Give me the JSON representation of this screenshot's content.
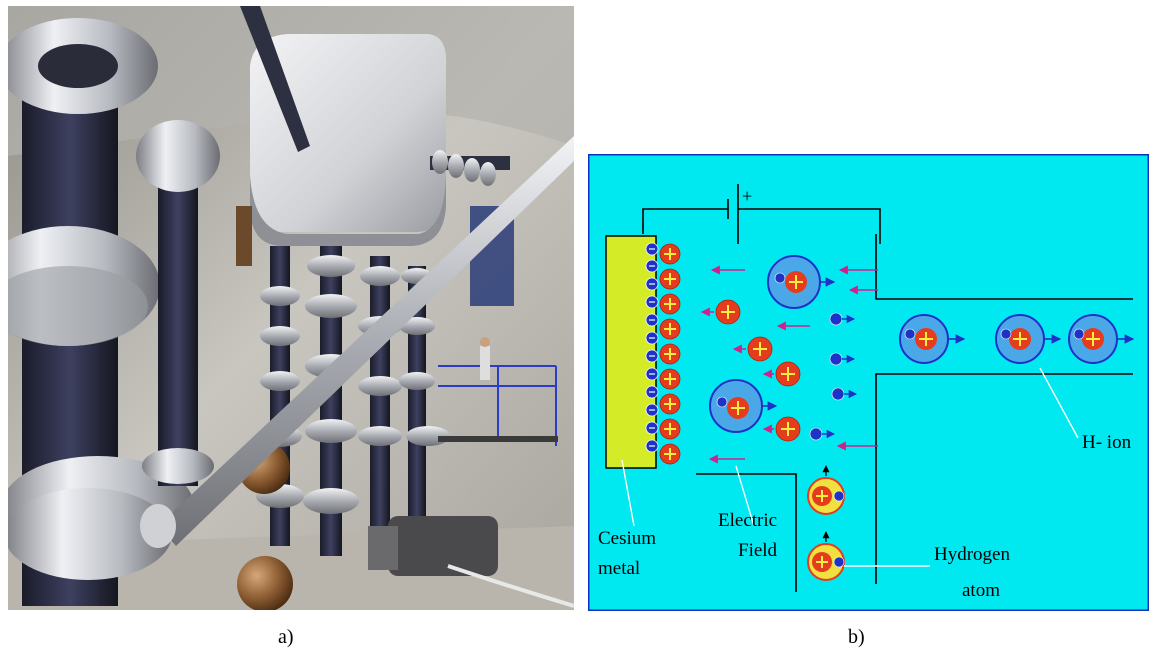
{
  "captions": {
    "a": "a)",
    "b": "b)"
  },
  "diagram": {
    "background_color": "#00e8f0",
    "labels": {
      "cesium_line1": "Cesium",
      "cesium_line2": "metal",
      "field_line1": "Electric",
      "field_line2": "Field",
      "hydrogen_line1": "Hydrogen",
      "hydrogen_line2": "atom",
      "h_ion": "H- ion",
      "battery_plus": "+"
    },
    "colors": {
      "cesium": "#d4ec28",
      "proton": "#e63c1e",
      "electron": "#1e32c8",
      "ion_halo": "#4aa8e8",
      "atom_halo": "#f0e040",
      "arrow_magenta": "#d0208c",
      "wire": "#000000"
    }
  },
  "photo": {
    "subject": "high-voltage-generator-hall"
  }
}
